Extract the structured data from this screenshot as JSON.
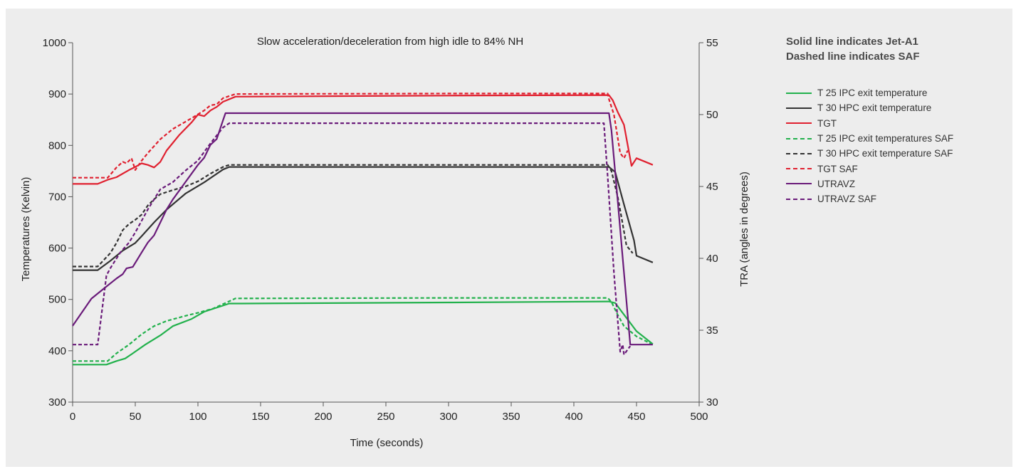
{
  "chart_data": {
    "type": "line",
    "title": "Slow acceleration/deceleration from high idle to 84% NH",
    "xlabel": "Time (seconds)",
    "ylabel": "Temperatures (Kelvin)",
    "y2label": "TRA (angles in degrees)",
    "xlim": [
      0,
      500
    ],
    "ylim": [
      300,
      1000
    ],
    "y2lim": [
      30,
      55
    ],
    "xticks": [
      "0",
      "50",
      "100",
      "150",
      "200",
      "250",
      "300",
      "350",
      "400",
      "450",
      "500"
    ],
    "yticks": [
      "300",
      "400",
      "500",
      "600",
      "700",
      "800",
      "900",
      "1000"
    ],
    "y2ticks": [
      "30",
      "35",
      "40",
      "45",
      "50",
      "55"
    ],
    "grid": false,
    "legend_position": "right",
    "notes": [
      "Solid line indicates Jet-A1",
      "Dashed line indicates SAF"
    ],
    "series": [
      {
        "name": "T 25 IPC exit temperature",
        "color": "#22b14c",
        "dash": false,
        "axis": "left",
        "x": [
          0,
          27,
          35,
          42,
          48,
          58,
          70,
          80,
          95,
          105,
          125,
          135,
          300,
          428,
          433,
          450,
          463
        ],
        "y": [
          373,
          373,
          380,
          385,
          395,
          412,
          430,
          448,
          462,
          476,
          492,
          492,
          494,
          496,
          493,
          438,
          413
        ]
      },
      {
        "name": "T 30 HPC exit temperature",
        "color": "#333333",
        "dash": false,
        "axis": "left",
        "x": [
          0,
          20,
          30,
          40,
          50,
          55,
          65,
          75,
          90,
          105,
          120,
          125,
          300,
          428,
          433,
          440,
          448,
          450,
          455,
          463
        ],
        "y": [
          557,
          557,
          575,
          595,
          610,
          623,
          650,
          675,
          706,
          728,
          753,
          758,
          758,
          758,
          748,
          685,
          615,
          585,
          580,
          572
        ]
      },
      {
        "name": "TGT",
        "color": "#e0202f",
        "dash": false,
        "axis": "left",
        "x": [
          0,
          20,
          28,
          35,
          45,
          50,
          55,
          60,
          65,
          70,
          75,
          85,
          95,
          100,
          105,
          110,
          115,
          120,
          130,
          300,
          428,
          431,
          435,
          440,
          446,
          450,
          463
        ],
        "y": [
          725,
          725,
          733,
          738,
          752,
          758,
          765,
          762,
          757,
          768,
          790,
          820,
          845,
          860,
          857,
          868,
          875,
          885,
          895,
          897,
          898,
          888,
          865,
          840,
          760,
          775,
          762
        ]
      },
      {
        "name": "T 25 IPC exit temperatures SAF",
        "color": "#22b14c",
        "dash": true,
        "axis": "left",
        "x": [
          0,
          28,
          35,
          45,
          55,
          65,
          75,
          90,
          100,
          112,
          130,
          300,
          427,
          430,
          435,
          440,
          450,
          463
        ],
        "y": [
          380,
          380,
          395,
          412,
          432,
          448,
          458,
          468,
          474,
          482,
          502,
          503,
          503,
          495,
          470,
          448,
          428,
          412
        ]
      },
      {
        "name": "T 30 HPC exit temperature SAF",
        "color": "#333333",
        "dash": true,
        "axis": "left",
        "x": [
          0,
          20,
          30,
          35,
          40,
          45,
          50,
          55,
          60,
          65,
          70,
          80,
          90,
          100,
          110,
          120,
          125,
          130,
          300,
          427,
          430,
          435,
          438,
          442,
          447
        ],
        "y": [
          564,
          564,
          590,
          610,
          635,
          647,
          655,
          665,
          683,
          695,
          705,
          713,
          720,
          730,
          745,
          758,
          762,
          762,
          762,
          762,
          750,
          700,
          660,
          605,
          590
        ]
      },
      {
        "name": "TGT SAF",
        "color": "#e0202f",
        "dash": true,
        "axis": "left",
        "x": [
          0,
          28,
          35,
          40,
          43,
          47,
          50,
          55,
          60,
          70,
          80,
          95,
          105,
          110,
          115,
          120,
          130,
          300,
          427,
          428,
          432,
          437,
          440,
          443
        ],
        "y": [
          737,
          737,
          757,
          768,
          765,
          775,
          752,
          770,
          785,
          812,
          832,
          853,
          868,
          878,
          880,
          892,
          900,
          901,
          901,
          890,
          860,
          785,
          775,
          790
        ]
      },
      {
        "name": "UTRAVZ",
        "color": "#6a1b7a",
        "dash": false,
        "axis": "right",
        "x": [
          0,
          15,
          25,
          35,
          40,
          43,
          48,
          55,
          60,
          65,
          70,
          75,
          80,
          90,
          100,
          105,
          110,
          115,
          120,
          122,
          300,
          428,
          430,
          435,
          440,
          445,
          463
        ],
        "y": [
          35.3,
          37.2,
          37.9,
          38.6,
          38.9,
          39.3,
          39.4,
          40.4,
          41.1,
          41.6,
          42.5,
          43.4,
          44.1,
          45.3,
          46.5,
          47.0,
          47.9,
          48.3,
          49.6,
          50.1,
          50.1,
          50.1,
          48.9,
          44.0,
          39.0,
          34.0,
          34.0
        ]
      },
      {
        "name": "UTRAVZ SAF",
        "color": "#6a1b7a",
        "dash": true,
        "axis": "right",
        "x": [
          0,
          20,
          27,
          30,
          38,
          45,
          50,
          60,
          65,
          70,
          80,
          90,
          100,
          110,
          120,
          125,
          300,
          424,
          427,
          432,
          437,
          439,
          440,
          445
        ],
        "y": [
          34.0,
          34.0,
          38.8,
          39.3,
          40.4,
          41.1,
          41.8,
          43.4,
          44.1,
          44.8,
          45.3,
          46.1,
          46.8,
          48.0,
          49.1,
          49.4,
          49.4,
          49.4,
          45.7,
          39.0,
          33.5,
          34.0,
          33.3,
          33.9
        ]
      }
    ]
  }
}
